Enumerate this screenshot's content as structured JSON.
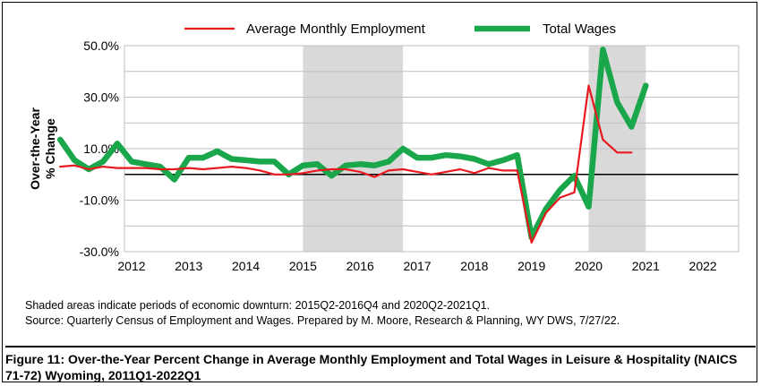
{
  "chart_data": {
    "type": "line",
    "ylabel_lines": [
      "Over-the-Year",
      "% Change"
    ],
    "ylim": [
      -30,
      50
    ],
    "yticks": [
      {
        "value": 50,
        "label": "50.0%"
      },
      {
        "value": 30,
        "label": "30.0%"
      },
      {
        "value": 10,
        "label": "10.0%"
      },
      {
        "value": -10,
        "label": "-10.0%"
      },
      {
        "value": -30,
        "label": "-30.0%"
      }
    ],
    "xlim": [
      2011.875,
      2022.625
    ],
    "xticks": [
      "2012",
      "2013",
      "2014",
      "2015",
      "2016",
      "2017",
      "2018",
      "2019",
      "2020",
      "2021",
      "2022"
    ],
    "grid": "horizontal",
    "legend": "top",
    "shaded_periods": [
      {
        "start": "2015Q2",
        "end": "2016Q4",
        "x0": 2015.0,
        "x1": 2016.75
      },
      {
        "start": "2020Q2",
        "end": "2021Q1",
        "x0": 2020.0,
        "x1": 2021.0
      }
    ],
    "x": [
      "2011Q1",
      "2011Q2",
      "2011Q3",
      "2011Q4",
      "2012Q1",
      "2012Q2",
      "2012Q3",
      "2012Q4",
      "2013Q1",
      "2013Q2",
      "2013Q3",
      "2013Q4",
      "2014Q1",
      "2014Q2",
      "2014Q3",
      "2014Q4",
      "2015Q1",
      "2015Q2",
      "2015Q3",
      "2015Q4",
      "2016Q1",
      "2016Q2",
      "2016Q3",
      "2016Q4",
      "2017Q1",
      "2017Q2",
      "2017Q3",
      "2017Q4",
      "2018Q1",
      "2018Q2",
      "2018Q3",
      "2018Q4",
      "2019Q1",
      "2019Q2",
      "2019Q3",
      "2019Q4",
      "2020Q1",
      "2020Q2",
      "2020Q3",
      "2020Q4",
      "2021Q1",
      "2021Q2",
      "2021Q3",
      "2021Q4",
      "2022Q1"
    ],
    "series": [
      {
        "name": "Average Monthly Employment",
        "color": "#e8191e",
        "values": [
          3,
          3.5,
          2,
          3,
          2.5,
          2.5,
          2.5,
          2,
          2,
          2.5,
          2,
          2.5,
          3,
          2.5,
          1.5,
          0,
          0,
          0.5,
          1.5,
          2,
          2,
          1,
          -1,
          1.5,
          2,
          1,
          0,
          1,
          2,
          0.5,
          2.5,
          1.5,
          1.5,
          -26.5,
          -15,
          -9,
          -7,
          34.5,
          13.5,
          8.5,
          8.5,
          null,
          null,
          null,
          null
        ]
      },
      {
        "name": "Total Wages",
        "color": "#1aa64a",
        "values": [
          13.5,
          5.5,
          2,
          5,
          12,
          5,
          4,
          3,
          -2,
          6.5,
          6.5,
          9,
          6,
          5.5,
          5,
          5,
          0,
          3.5,
          4,
          -0.5,
          3.5,
          4,
          3.5,
          5,
          10,
          6.5,
          6.5,
          7.5,
          7,
          6,
          4,
          5.5,
          7.5,
          -24.5,
          -13.5,
          -6,
          -0.5,
          -12.5,
          48.5,
          28,
          18.5,
          34.5,
          null,
          null,
          null
        ]
      }
    ]
  },
  "notes": {
    "shading": "Shaded areas indicate periods of economic downturn: 2015Q2-2016Q4 and 2020Q2-2021Q1.",
    "source": "Source: Quarterly Census of Employment and Wages. Prepared by M. Moore, Research & Planning, WY DWS, 7/27/22."
  },
  "caption": {
    "line1": "Figure 11: Over-the-Year Percent Change in Average Monthly Employment and Total Wages in Leisure & Hospitality (NAICS",
    "line2": "71-72) Wyoming, 2011Q1-2022Q1"
  }
}
